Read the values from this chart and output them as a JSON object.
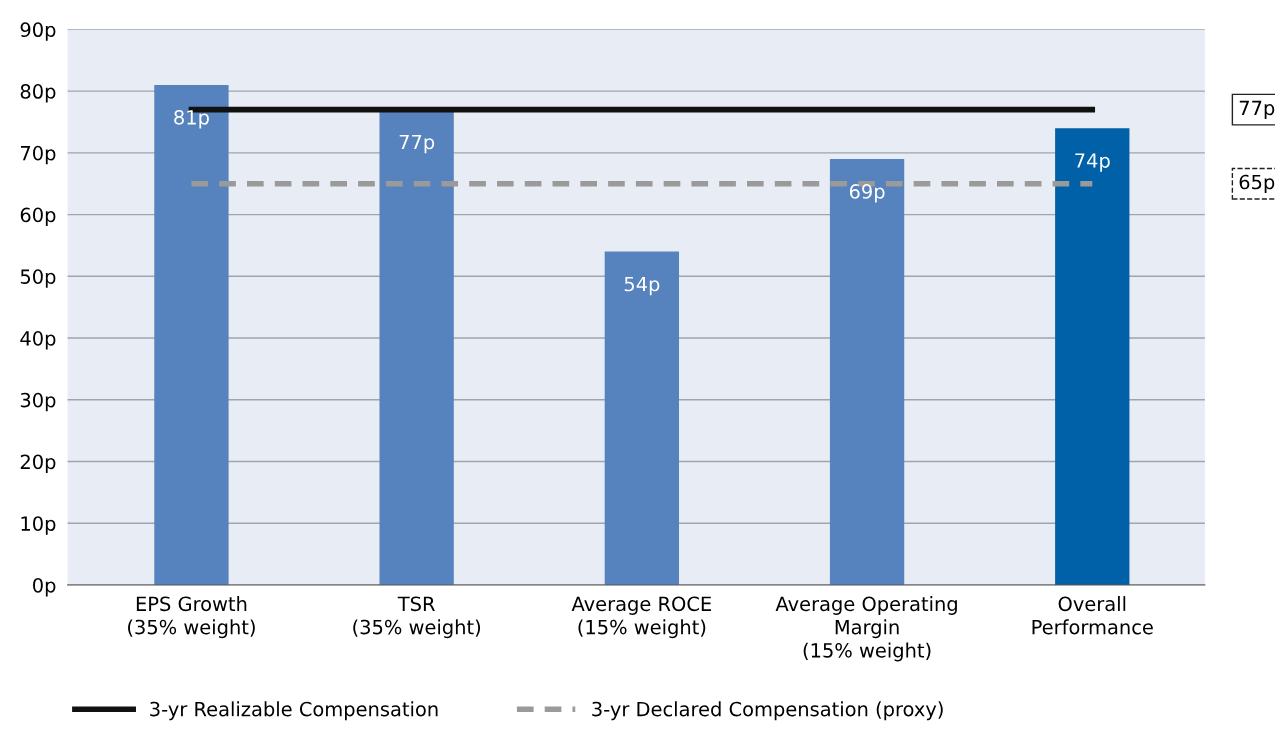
{
  "chart_data": {
    "type": "bar",
    "categories": [
      "EPS Growth\n(35% weight)",
      "TSR\n(35% weight)",
      "Average ROCE\n(15% weight)",
      "Average Operating\nMargin\n(15% weight)",
      "Overall\nPerformance"
    ],
    "series": [
      {
        "values": [
          81,
          77,
          54,
          69,
          74
        ],
        "colors": [
          "#5682bd",
          "#5682bd",
          "#5682bd",
          "#5682bd",
          "#0060a8"
        ],
        "value_labels": [
          "81p",
          "77p",
          "54p",
          "69p",
          "74p"
        ]
      },
      {
        "type": "line",
        "name": "3-yr Realizable Compensation",
        "color": "#111111",
        "values": [
          77,
          77,
          77,
          77,
          77
        ],
        "line_style": "solid"
      },
      {
        "type": "line",
        "name": "3-yr Declared Compensation (proxy)",
        "color": "#9a9a9a",
        "values": [
          65,
          65,
          65,
          65,
          65
        ],
        "line_style": "dashed"
      }
    ],
    "annotations": [
      "77p",
      "65p"
    ],
    "ylim": [
      0,
      90
    ],
    "yticks": [
      {
        "value": 0,
        "label": "0p"
      },
      {
        "value": 10,
        "label": "10p"
      },
      {
        "value": 20,
        "label": "20p"
      },
      {
        "value": 30,
        "label": "30p"
      },
      {
        "value": 40,
        "label": "40p"
      },
      {
        "value": 50,
        "label": "50p"
      },
      {
        "value": 60,
        "label": "60p"
      },
      {
        "value": 70,
        "label": "70p"
      },
      {
        "value": 80,
        "label": "80p"
      },
      {
        "value": 90,
        "label": "90p"
      }
    ],
    "grid": "y",
    "legend": "bottom"
  }
}
